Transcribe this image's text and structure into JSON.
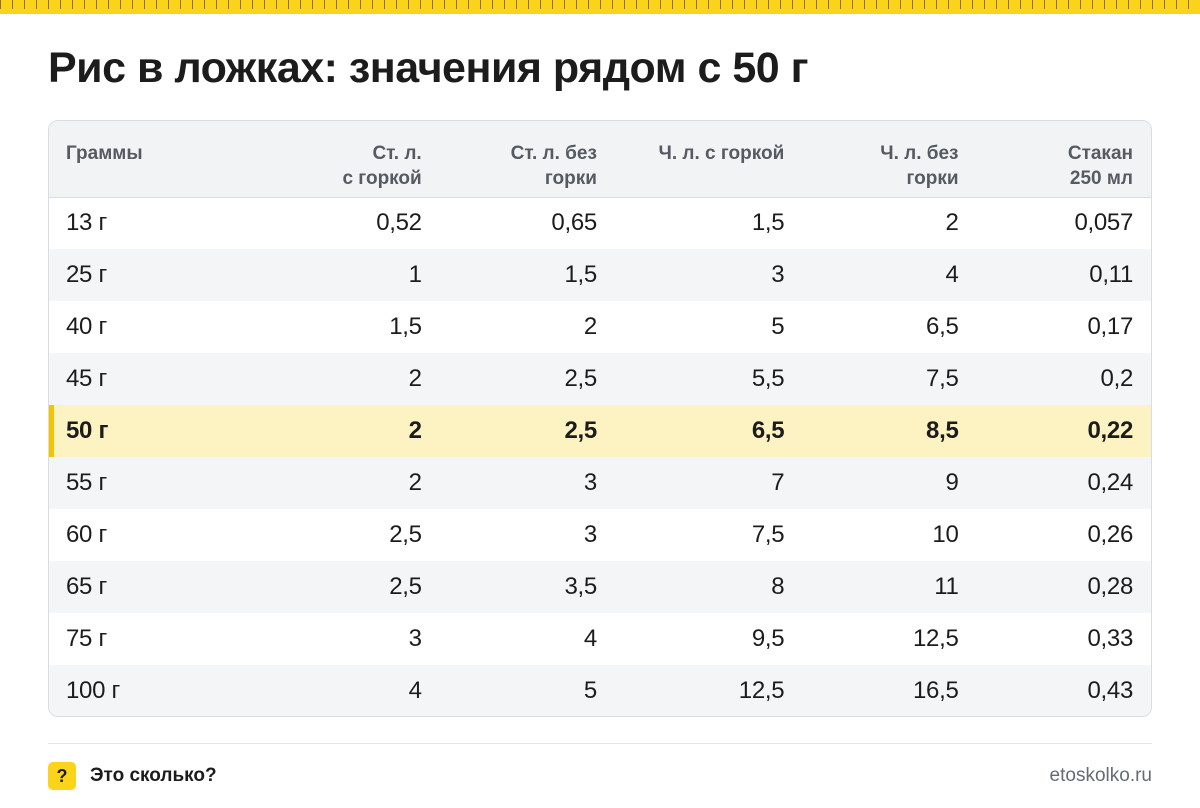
{
  "title": "Рис в ложках: значения рядом с 50 г",
  "table": {
    "headers": [
      [
        "Граммы"
      ],
      [
        "Ст. л.",
        "с горкой"
      ],
      [
        "Ст. л. без",
        "горки"
      ],
      [
        "Ч. л. с горкой"
      ],
      [
        "Ч. л. без",
        "горки"
      ],
      [
        "Стакан",
        "250 мл"
      ]
    ],
    "rows": [
      [
        "13 г",
        "0,52",
        "0,65",
        "1,5",
        "2",
        "0,057"
      ],
      [
        "25 г",
        "1",
        "1,5",
        "3",
        "4",
        "0,11"
      ],
      [
        "40 г",
        "1,5",
        "2",
        "5",
        "6,5",
        "0,17"
      ],
      [
        "45 г",
        "2",
        "2,5",
        "5,5",
        "7,5",
        "0,2"
      ],
      [
        "50 г",
        "2",
        "2,5",
        "6,5",
        "8,5",
        "0,22"
      ],
      [
        "55 г",
        "2",
        "3",
        "7",
        "9",
        "0,24"
      ],
      [
        "60 г",
        "2,5",
        "3",
        "7,5",
        "10",
        "0,26"
      ],
      [
        "65 г",
        "2,5",
        "3,5",
        "8",
        "11",
        "0,28"
      ],
      [
        "75 г",
        "3",
        "4",
        "9,5",
        "12,5",
        "0,33"
      ],
      [
        "100 г",
        "4",
        "5",
        "12,5",
        "16,5",
        "0,43"
      ]
    ],
    "highlighted_row": "50 г"
  },
  "footer": {
    "badge": "?",
    "brand": "Это сколько?",
    "site": "etoskolko.ru"
  },
  "colors": {
    "accent": "#fbd31a",
    "highlight_row": "#fdf3c2",
    "highlight_marker": "#f5c400"
  }
}
